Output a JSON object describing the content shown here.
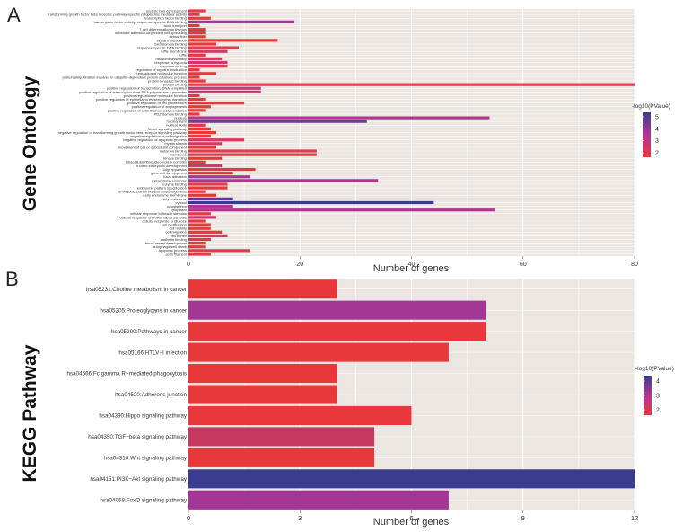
{
  "panels": {
    "a": "A",
    "b": "B"
  },
  "chart_data": [
    {
      "type": "bar",
      "orientation": "horizontal",
      "side_title": "Gene Ontology",
      "xlabel": "Number of genes",
      "xlim": [
        0,
        80
      ],
      "xticks": [
        0,
        20,
        40,
        60,
        80
      ],
      "legend": {
        "title": "-log10(PValue)",
        "ticks": [
          5,
          4,
          3,
          2
        ],
        "position": "right",
        "color_low": "#e8383b",
        "color_mid": "#b23592",
        "color_high": "#3a3d8f"
      },
      "grid": true,
      "categories": [
        "ureteric bud development",
        "transforming growth factor beta receptor, pathway-specific cytoplasmic mediator activity",
        "transcription factor binding",
        "transcription factor activity, sequence-specific DNA binding",
        "toxin transport",
        "T cell differentiation in thymus",
        "substrate adhesion-dependent cell spreading",
        "stress fiber",
        "signal transduction",
        "SH3 domain binding",
        "sequence-specific DNA binding",
        "ruffle membrane",
        "ruffle",
        "ribosome assembly",
        "response to hypoxia",
        "response to drug",
        "regulation of signal transduction",
        "regulation of molecular function",
        "protein ubiquitination involved in ubiquitin-dependent protein catabolic process",
        "protein kinase C binding",
        "protein binding",
        "positive regulation of transcription, DNA-templated",
        "positive regulation of transcription from RNA polymerase II promoter",
        "positive regulation of molecular function",
        "positive regulation of epithelial to mesenchymal transition",
        "positive regulation of cell proliferation",
        "positive regulation of angiogenesis",
        "positive regulation of actin filament polymerization",
        "PDZ domain binding",
        "nucleus",
        "nucleoplasm",
        "nuclear body",
        "Notch signaling pathway",
        "negative regulation of transforming growth factor beta receptor signaling pathway",
        "negative regulation of cell migration",
        "negative regulation of apoptotic process",
        "myelin sheath",
        "movement of cell or subcellular component",
        "metal ion binding",
        "membrane",
        "kinase binding",
        "intracellular ribonucleoprotein complex",
        "in utero embryonic development",
        "Golgi apparatus",
        "gene cell development",
        "focal adhesion",
        "extracellular exosome",
        "enzyme binding",
        "embryonic pattern specification",
        "embryonic cranial skeleton morphogenesis",
        "early endosome membrane",
        "early endosome",
        "cytosol",
        "cytoskeleton",
        "cytoplasm",
        "cellular response to insulin stimulus",
        "cellular response to growth factor stimulus",
        "cellular response to glucose",
        "cell proliferation",
        "cell motility",
        "cell migration",
        "cell cortex",
        "cadherin binding",
        "blood vessel development",
        "autophagic cell death",
        "apoptotic process",
        "actin filament"
      ],
      "values": [
        3,
        2,
        4,
        19,
        2,
        3,
        3,
        3,
        16,
        5,
        9,
        7,
        3,
        6,
        7,
        7,
        2,
        5,
        2,
        3,
        81,
        13,
        13,
        2,
        3,
        10,
        4,
        3,
        2,
        54,
        32,
        3,
        4,
        5,
        4,
        10,
        6,
        5,
        23,
        23,
        6,
        3,
        6,
        12,
        8,
        11,
        34,
        7,
        7,
        3,
        5,
        8,
        44,
        8,
        55,
        4,
        5,
        3,
        4,
        4,
        6,
        7,
        4,
        3,
        3,
        11,
        4
      ],
      "pvalue_colors": [
        "#e8383b",
        "#e23a4e",
        "#e8383b",
        "#a43796",
        "#e8383b",
        "#e8383b",
        "#e8383b",
        "#e8383b",
        "#e8383b",
        "#e8383b",
        "#e23a4e",
        "#d13a66",
        "#e8383b",
        "#d63a5e",
        "#c63a76",
        "#e23a4e",
        "#e8383b",
        "#e8383b",
        "#e8383b",
        "#e8383b",
        "#e23a4e",
        "#c63a76",
        "#c93a72",
        "#e8383b",
        "#e8383b",
        "#e8383b",
        "#e8383b",
        "#e8383b",
        "#e8383b",
        "#b23592",
        "#7a3696",
        "#e8383b",
        "#e8383b",
        "#e8383b",
        "#e8383b",
        "#d63a5e",
        "#d13a66",
        "#e8383b",
        "#e23a4e",
        "#e23a4e",
        "#e8383b",
        "#e8383b",
        "#d13a66",
        "#e8383b",
        "#e8383b",
        "#a43796",
        "#b23592",
        "#e23a4e",
        "#e8383b",
        "#e8383b",
        "#e8383b",
        "#6a3a96",
        "#3a3d8f",
        "#b23592",
        "#b23592",
        "#e8383b",
        "#c63a76",
        "#e8383b",
        "#e8383b",
        "#e8383b",
        "#e8383b",
        "#d13a66",
        "#e8383b",
        "#e8383b",
        "#e8383b",
        "#e23a4e",
        "#e8383b"
      ]
    },
    {
      "type": "bar",
      "orientation": "horizontal",
      "side_title": "KEGG Pathway",
      "xlabel": "Number of genes",
      "xlim": [
        0,
        12
      ],
      "xticks": [
        0,
        3,
        6,
        9,
        12
      ],
      "legend": {
        "title": "-log10(PValue)",
        "ticks": [
          4,
          3,
          2
        ],
        "position": "right",
        "color_low": "#e8383b",
        "color_mid": "#b23592",
        "color_high": "#3a3d8f"
      },
      "grid": true,
      "categories": [
        "hsa05231:Choline metabolism in cancer",
        "hsa05205:Proteoglycans in cancer",
        "hsa05200:Pathways in cancer",
        "hsa05166:HTLV−I infection",
        "hsa04666:Fc gamma R−mediated phagocytosis",
        "hsa04520:Adherens junction",
        "hsa04390:Hippo signaling pathway",
        "hsa04350:TGF−beta signaling pathway",
        "hsa04310:Wnt signaling pathway",
        "hsa04151:PI3K−Akt signaling pathway",
        "hsa04068:FoxO signaling pathway"
      ],
      "values": [
        4,
        8,
        8,
        7,
        4,
        4,
        6,
        5,
        5,
        12,
        7
      ],
      "pvalue_colors": [
        "#e8383b",
        "#a43796",
        "#e8383b",
        "#e8383b",
        "#e8383b",
        "#e8383b",
        "#e8383b",
        "#c63a62",
        "#e8383b",
        "#3a3d8f",
        "#a43796"
      ]
    }
  ]
}
